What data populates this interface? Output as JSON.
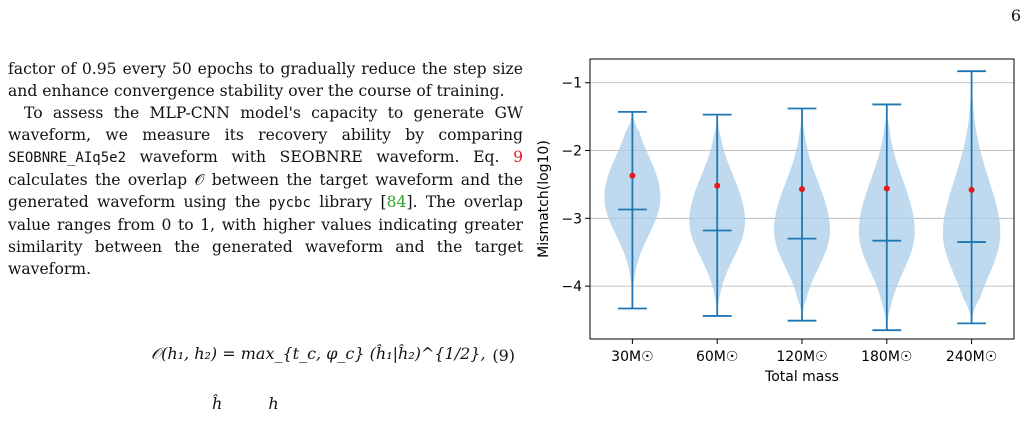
{
  "page": {
    "number": "6",
    "paragraph1": "factor of 0.95 every 50 epochs to gradually reduce the step size and enhance convergence stability over the course of training.",
    "paragraph2": {
      "part1": "To assess the MLP-CNN model's capacity to generate GW waveform, we measure its recovery ability by comparing ",
      "code1": "SEOBNRE_AIq5e2",
      "part2": " waveform with SEOBNRE waveform. Eq. ",
      "eq_ref": "9",
      "part3": " calculates the overlap 𝒪 between the target waveform and the generated waveform using the ",
      "code2": "pycbc",
      "part4": " library [",
      "cite": "84",
      "part5": "]. The overlap value ranges from 0 to 1, with higher values indicating greater similarity between the generated waveform and the target waveform."
    },
    "equation": {
      "body": "𝒪(h₁, h₂) = max_{t_c, φ_c} (ĥ₁|ĥ₂)^{1/2},",
      "number": "(9)"
    },
    "equation_fragment": {
      "lhs": "ĥ",
      "rhs": "h"
    }
  },
  "chart_data": {
    "type": "violin",
    "title": "",
    "xlabel": "Total mass",
    "ylabel": "Mismatch(log10)",
    "ylim": [
      -4.78,
      -0.65
    ],
    "yticks": [
      -1,
      -2,
      -3,
      -4
    ],
    "ytick_labels": [
      "−1",
      "−2",
      "−3",
      "−4"
    ],
    "grid": "horizontal",
    "categories": [
      "30M☉",
      "60M☉",
      "120M☉",
      "180M☉",
      "240M☉"
    ],
    "series": [
      {
        "values": [
          {
            "category": "30M☉",
            "max": -1.43,
            "min": -4.33,
            "median": -2.87,
            "mean": -2.37
          },
          {
            "category": "60M☉",
            "max": -1.47,
            "min": -4.44,
            "median": -3.18,
            "mean": -2.52
          },
          {
            "category": "120M☉",
            "max": -1.38,
            "min": -4.51,
            "median": -3.3,
            "mean": -2.57
          },
          {
            "category": "180M☉",
            "max": -1.32,
            "min": -4.65,
            "median": -3.33,
            "mean": -2.56
          },
          {
            "category": "240M☉",
            "max": -0.83,
            "min": -4.55,
            "median": -3.35,
            "mean": -2.58
          }
        ]
      }
    ],
    "colors": {
      "body": "#aacde8",
      "lines": "#1f77b4",
      "mean_marker": "#e41a1c",
      "grid": "#b0b0b0"
    }
  }
}
